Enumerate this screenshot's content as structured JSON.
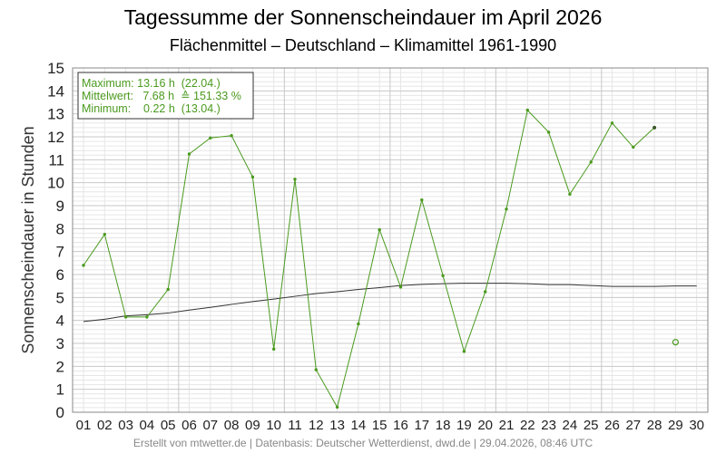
{
  "colors": {
    "series": "#4a9a1e",
    "clim": "#333333",
    "grid_major": "#c8c8c8",
    "grid_minor": "#e6e6e6",
    "frame": "#888888",
    "text": "#222222",
    "footer": "#888888"
  },
  "chart_data": {
    "type": "line",
    "title": "Tagessumme der Sonnenscheindauer im April 2026",
    "subtitle": "Flächenmittel – Deutschland – Klimamittel 1961-1990",
    "ylabel": "Sonnenscheindauer in Stunden",
    "xlabel": "",
    "ylim": [
      0,
      15
    ],
    "yticks": [
      "0",
      "1",
      "2",
      "3",
      "4",
      "5",
      "6",
      "7",
      "8",
      "9",
      "10",
      "11",
      "12",
      "13",
      "14",
      "15"
    ],
    "xticks": [
      "01",
      "02",
      "03",
      "04",
      "05",
      "06",
      "07",
      "08",
      "09",
      "10",
      "11",
      "12",
      "13",
      "14",
      "15",
      "16",
      "17",
      "18",
      "19",
      "20",
      "21",
      "22",
      "23",
      "24",
      "25",
      "26",
      "27",
      "28",
      "29",
      "30"
    ],
    "grid": true,
    "stats": {
      "max_line": "Maximum: 13.16 h  (22.04.)",
      "mean_line": "Mittelwert:   7.68 h  ≙ 151.33 %",
      "min_line": "Minimum:    0.22 h  (13.04.)"
    },
    "series": [
      {
        "values": [
          6.4,
          7.75,
          4.15,
          4.15,
          5.35,
          11.25,
          11.95,
          12.05,
          10.25,
          2.75,
          10.15,
          1.85,
          0.22,
          3.85,
          7.95,
          5.45,
          9.25,
          5.95,
          2.65,
          5.25,
          8.85,
          13.16,
          12.2,
          9.5,
          10.9,
          12.6,
          11.55,
          12.4,
          null,
          null
        ]
      },
      {
        "values": [
          3.95,
          4.05,
          4.2,
          4.25,
          4.32,
          4.45,
          4.57,
          4.7,
          4.82,
          4.93,
          5.05,
          5.17,
          5.25,
          5.35,
          5.43,
          5.52,
          5.57,
          5.6,
          5.62,
          5.62,
          5.62,
          5.6,
          5.56,
          5.56,
          5.52,
          5.48,
          5.48,
          5.48,
          5.5,
          5.5
        ]
      }
    ],
    "open_marker": {
      "day": 29,
      "value": 3.05
    }
  },
  "footer": "Erstellt von mtwetter.de | Datenbasis: Deutscher Wetterdienst, dwd.de | 29.04.2026, 08:46 UTC"
}
